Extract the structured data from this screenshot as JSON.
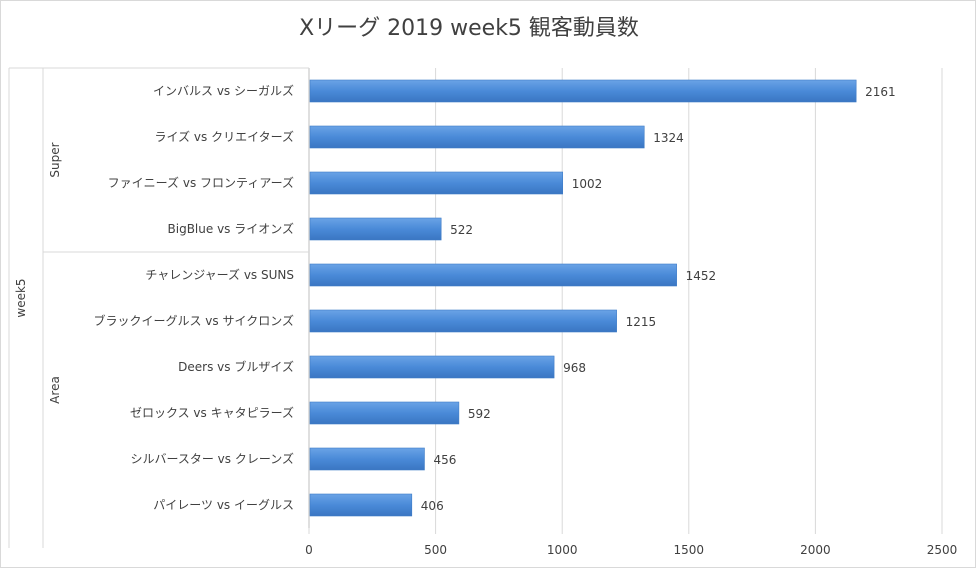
{
  "chart_data": {
    "type": "bar",
    "orientation": "horizontal",
    "title": "Xリーグ 2019 week5 観客動員数",
    "outer_group": "week5",
    "groups": [
      {
        "name": "Super",
        "categories": [
          "インバルス vs シーガルズ",
          "ライズ vs クリエイターズ",
          "ファイニーズ vs フロンティアーズ",
          "BigBlue vs ライオンズ"
        ],
        "values": [
          2161,
          1324,
          1002,
          522
        ]
      },
      {
        "name": "Area",
        "categories": [
          "チャレンジャーズ vs SUNS",
          "ブラックイーグルス vs サイクロンズ",
          "Deers vs ブルザイズ",
          "ゼロックス vs キャタピラーズ",
          "シルバースター vs クレーンズ",
          "パイレーツ vs イーグルス"
        ],
        "values": [
          1452,
          1215,
          968,
          592,
          456,
          406
        ]
      }
    ],
    "xlim": [
      0,
      2500
    ],
    "ticks": [
      0,
      500,
      1000,
      1500,
      2000,
      2500
    ],
    "grid": true,
    "bar_color": "#4a8ad8",
    "legend": "none"
  }
}
